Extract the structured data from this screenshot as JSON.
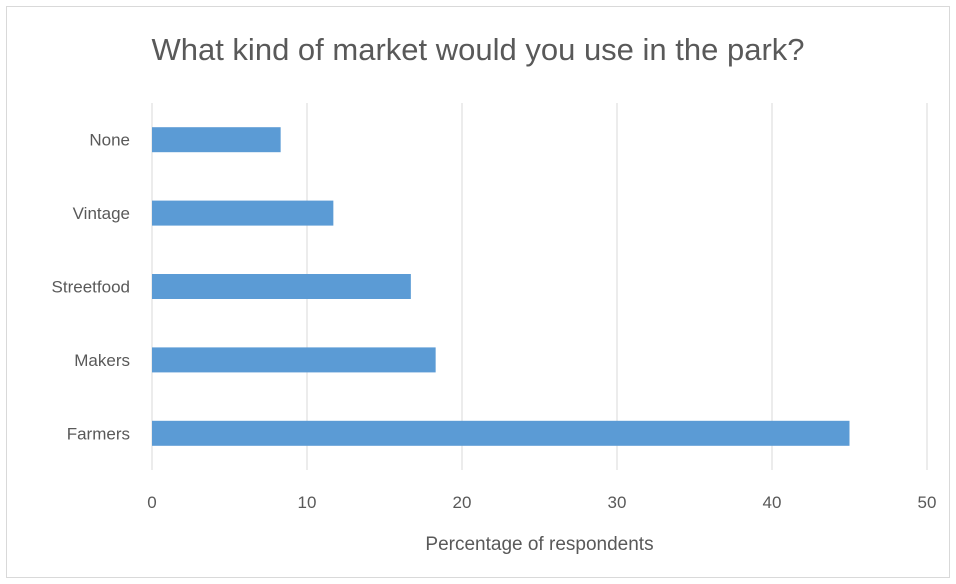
{
  "chart_data": {
    "type": "bar",
    "orientation": "horizontal",
    "title": "What kind of market would you use in the park?",
    "xlabel": "Percentage of respondents",
    "ylabel": "",
    "categories": [
      "Farmers",
      "Makers",
      "Streetfood",
      "Vintage",
      "None"
    ],
    "values": [
      45,
      18.3,
      16.7,
      11.7,
      8.3
    ],
    "xlim": [
      0,
      50
    ],
    "xticks": [
      "0",
      "10",
      "20",
      "30",
      "40",
      "50"
    ],
    "grid": true,
    "legend": "none",
    "bar_color": "#5b9bd5",
    "grid_color": "#d9d9d9"
  }
}
